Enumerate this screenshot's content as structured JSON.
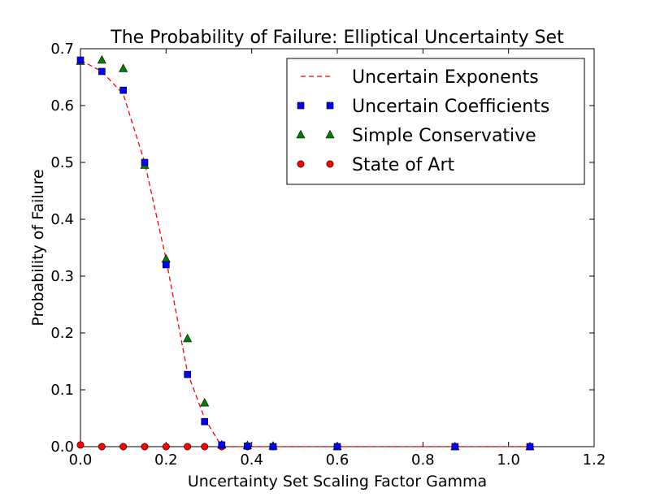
{
  "chart_data": {
    "type": "scatter",
    "title": "The Probability of Failure: Elliptical Uncertainty Set",
    "xlabel": "Uncertainty Set Scaling Factor Gamma",
    "ylabel": "Probability of Failure",
    "xlim": [
      0.0,
      1.2
    ],
    "ylim": [
      0.0,
      0.7
    ],
    "xticks": [
      "0.0",
      "0.2",
      "0.4",
      "0.6",
      "0.8",
      "1.0",
      "1.2"
    ],
    "yticks": [
      "0.0",
      "0.1",
      "0.2",
      "0.3",
      "0.4",
      "0.5",
      "0.6",
      "0.7"
    ],
    "grid": false,
    "legend_position": "top-right",
    "series": [
      {
        "name": "Uncertain Exponents",
        "style": "dashed-line",
        "color": "#ff0000",
        "x": [
          0.0,
          0.05,
          0.1,
          0.15,
          0.2,
          0.25,
          0.29,
          0.33,
          0.39,
          0.45,
          0.6,
          0.875,
          1.05
        ],
        "y": [
          0.68,
          0.66,
          0.62,
          0.5,
          0.33,
          0.13,
          0.05,
          0.0,
          0.0,
          0.0,
          0.0,
          0.0,
          0.0
        ]
      },
      {
        "name": "Uncertain Coefficients",
        "style": "square",
        "color": "#0000ff",
        "x": [
          0.0,
          0.05,
          0.1,
          0.15,
          0.2,
          0.25,
          0.29,
          0.33,
          0.39,
          0.45,
          0.6,
          0.875,
          1.05
        ],
        "y": [
          0.68,
          0.66,
          0.627,
          0.5,
          0.32,
          0.127,
          0.044,
          0.003,
          0.001,
          0.0,
          0.0,
          0.0,
          0.0
        ]
      },
      {
        "name": "Simple Conservative",
        "style": "triangle",
        "color": "#008000",
        "x": [
          0.0,
          0.05,
          0.1,
          0.15,
          0.2,
          0.25,
          0.29,
          0.33,
          0.39,
          0.45,
          0.6,
          0.875,
          1.05
        ],
        "y": [
          0.678,
          0.68,
          0.665,
          0.495,
          0.33,
          0.19,
          0.077,
          0.003,
          0.002,
          0.001,
          0.0,
          0.0,
          0.0
        ]
      },
      {
        "name": "State of Art",
        "style": "circle",
        "color": "#ff0000",
        "x": [
          0.0,
          0.05,
          0.1,
          0.15,
          0.2,
          0.25,
          0.29,
          0.33,
          0.39,
          0.45,
          0.6,
          0.875,
          1.05
        ],
        "y": [
          0.003,
          0.0,
          0.0,
          0.0,
          0.0,
          0.0,
          0.0,
          0.0,
          0.0,
          0.0,
          0.0,
          0.0,
          0.0
        ]
      }
    ]
  }
}
